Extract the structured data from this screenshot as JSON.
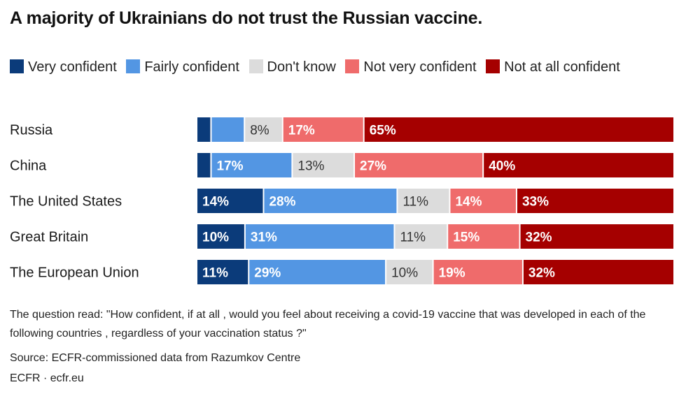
{
  "chart_data": {
    "type": "bar",
    "orientation": "horizontal",
    "stacked": true,
    "normalized": true,
    "title": "A majority of Ukrainians do not trust the Russian vaccine.",
    "categories": [
      "Russia",
      "China",
      "The United States",
      "Great Britain",
      "The European Union"
    ],
    "series": [
      {
        "name": "Very confident",
        "color": "#0b3b7a",
        "values": [
          3,
          3,
          14,
          10,
          11
        ],
        "labels": [
          "",
          "",
          "14%",
          "10%",
          "11%"
        ]
      },
      {
        "name": "Fairly confident",
        "color": "#5396e3",
        "values": [
          7,
          17,
          28,
          31,
          29
        ],
        "labels": [
          "",
          "17%",
          "28%",
          "31%",
          "29%"
        ]
      },
      {
        "name": "Don't know",
        "color": "#dcdcdc",
        "values": [
          8,
          13,
          11,
          11,
          10
        ],
        "labels": [
          "8%",
          "13%",
          "11%",
          "11%",
          "10%"
        ]
      },
      {
        "name": "Not very confident",
        "color": "#ef6b6b",
        "values": [
          17,
          27,
          14,
          15,
          19
        ],
        "labels": [
          "17%",
          "27%",
          "14%",
          "15%",
          "19%"
        ]
      },
      {
        "name": "Not at all confident",
        "color": "#a50000",
        "values": [
          65,
          40,
          33,
          32,
          32
        ],
        "labels": [
          "65%",
          "40%",
          "33%",
          "32%",
          "32%"
        ]
      }
    ]
  },
  "note": "The question read: \"How confident, if at all , would you feel about receiving a covid-19 vaccine that was developed in each of the following countries , regardless of your vaccination status ?\"",
  "source": "Source: ECFR-commissioned data from Razumkov Centre",
  "credit": "ECFR · ecfr.eu"
}
